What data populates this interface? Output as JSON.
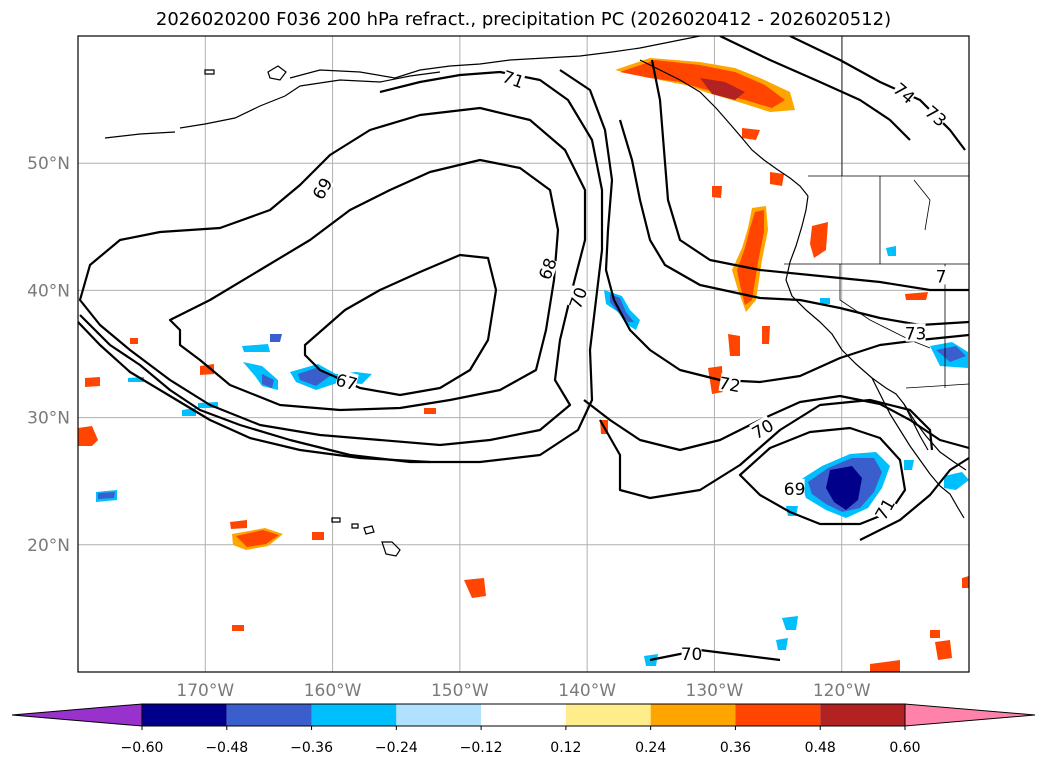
{
  "title": "2026020200 F036 200 hPa refract., precipitation PC (2026020412 - 2026020512)",
  "chart_data": {
    "type": "map",
    "projection": "equirectangular",
    "lon_range": [
      -180,
      -110
    ],
    "lat_range": [
      10,
      60
    ],
    "lat_ticks": [
      {
        "value": 20,
        "label": "20°N"
      },
      {
        "value": 30,
        "label": "30°N"
      },
      {
        "value": 40,
        "label": "40°N"
      },
      {
        "value": 50,
        "label": "50°N"
      }
    ],
    "lon_ticks": [
      {
        "value": -170,
        "label": "170°W"
      },
      {
        "value": -160,
        "label": "160°W"
      },
      {
        "value": -150,
        "label": "150°W"
      },
      {
        "value": -140,
        "label": "140°W"
      },
      {
        "value": -130,
        "label": "130°W"
      },
      {
        "value": -120,
        "label": "120°W"
      }
    ],
    "contour_labels": [
      {
        "text": "71",
        "lon": -145.8,
        "lat": 56.6,
        "rot": 20
      },
      {
        "text": "74",
        "lon": -115.1,
        "lat": 55.5,
        "rot": 40
      },
      {
        "text": "73",
        "lon": -112.6,
        "lat": 53.7,
        "rot": 40
      },
      {
        "text": "69",
        "lon": -160.8,
        "lat": 48.0,
        "rot": -60
      },
      {
        "text": "68",
        "lon": -143.1,
        "lat": 41.7,
        "rot": -70
      },
      {
        "text": "70",
        "lon": -140.7,
        "lat": 39.4,
        "rot": -70
      },
      {
        "text": "67",
        "lon": -158.9,
        "lat": 32.8,
        "rot": 15
      },
      {
        "text": "72",
        "lon": -128.8,
        "lat": 32.6,
        "rot": 10
      },
      {
        "text": "73",
        "lon": -114.2,
        "lat": 36.6,
        "rot": 0
      },
      {
        "text": "70",
        "lon": -126.2,
        "lat": 29.1,
        "rot": -30
      },
      {
        "text": "69",
        "lon": -123.7,
        "lat": 24.4,
        "rot": 0
      },
      {
        "text": "71",
        "lon": -116.6,
        "lat": 22.8,
        "rot": -60
      },
      {
        "text": "70",
        "lon": -131.8,
        "lat": 11.4,
        "rot": 0
      },
      {
        "text": "7",
        "lon": -112.2,
        "lat": 41.1,
        "rot": 0
      }
    ],
    "colorbar": {
      "ticks": [
        "−0.60",
        "−0.48",
        "−0.36",
        "−0.24",
        "−0.12",
        "0.12",
        "0.24",
        "0.36",
        "0.48",
        "0.60"
      ],
      "colors": [
        "#9932CC",
        "#00008B",
        "#3A5FCD",
        "#00BFFF",
        "#B0E2FF",
        "#FFFFFF",
        "#FFEC8B",
        "#FFA500",
        "#FF4500",
        "#B22222",
        "#FF82AB"
      ]
    }
  }
}
